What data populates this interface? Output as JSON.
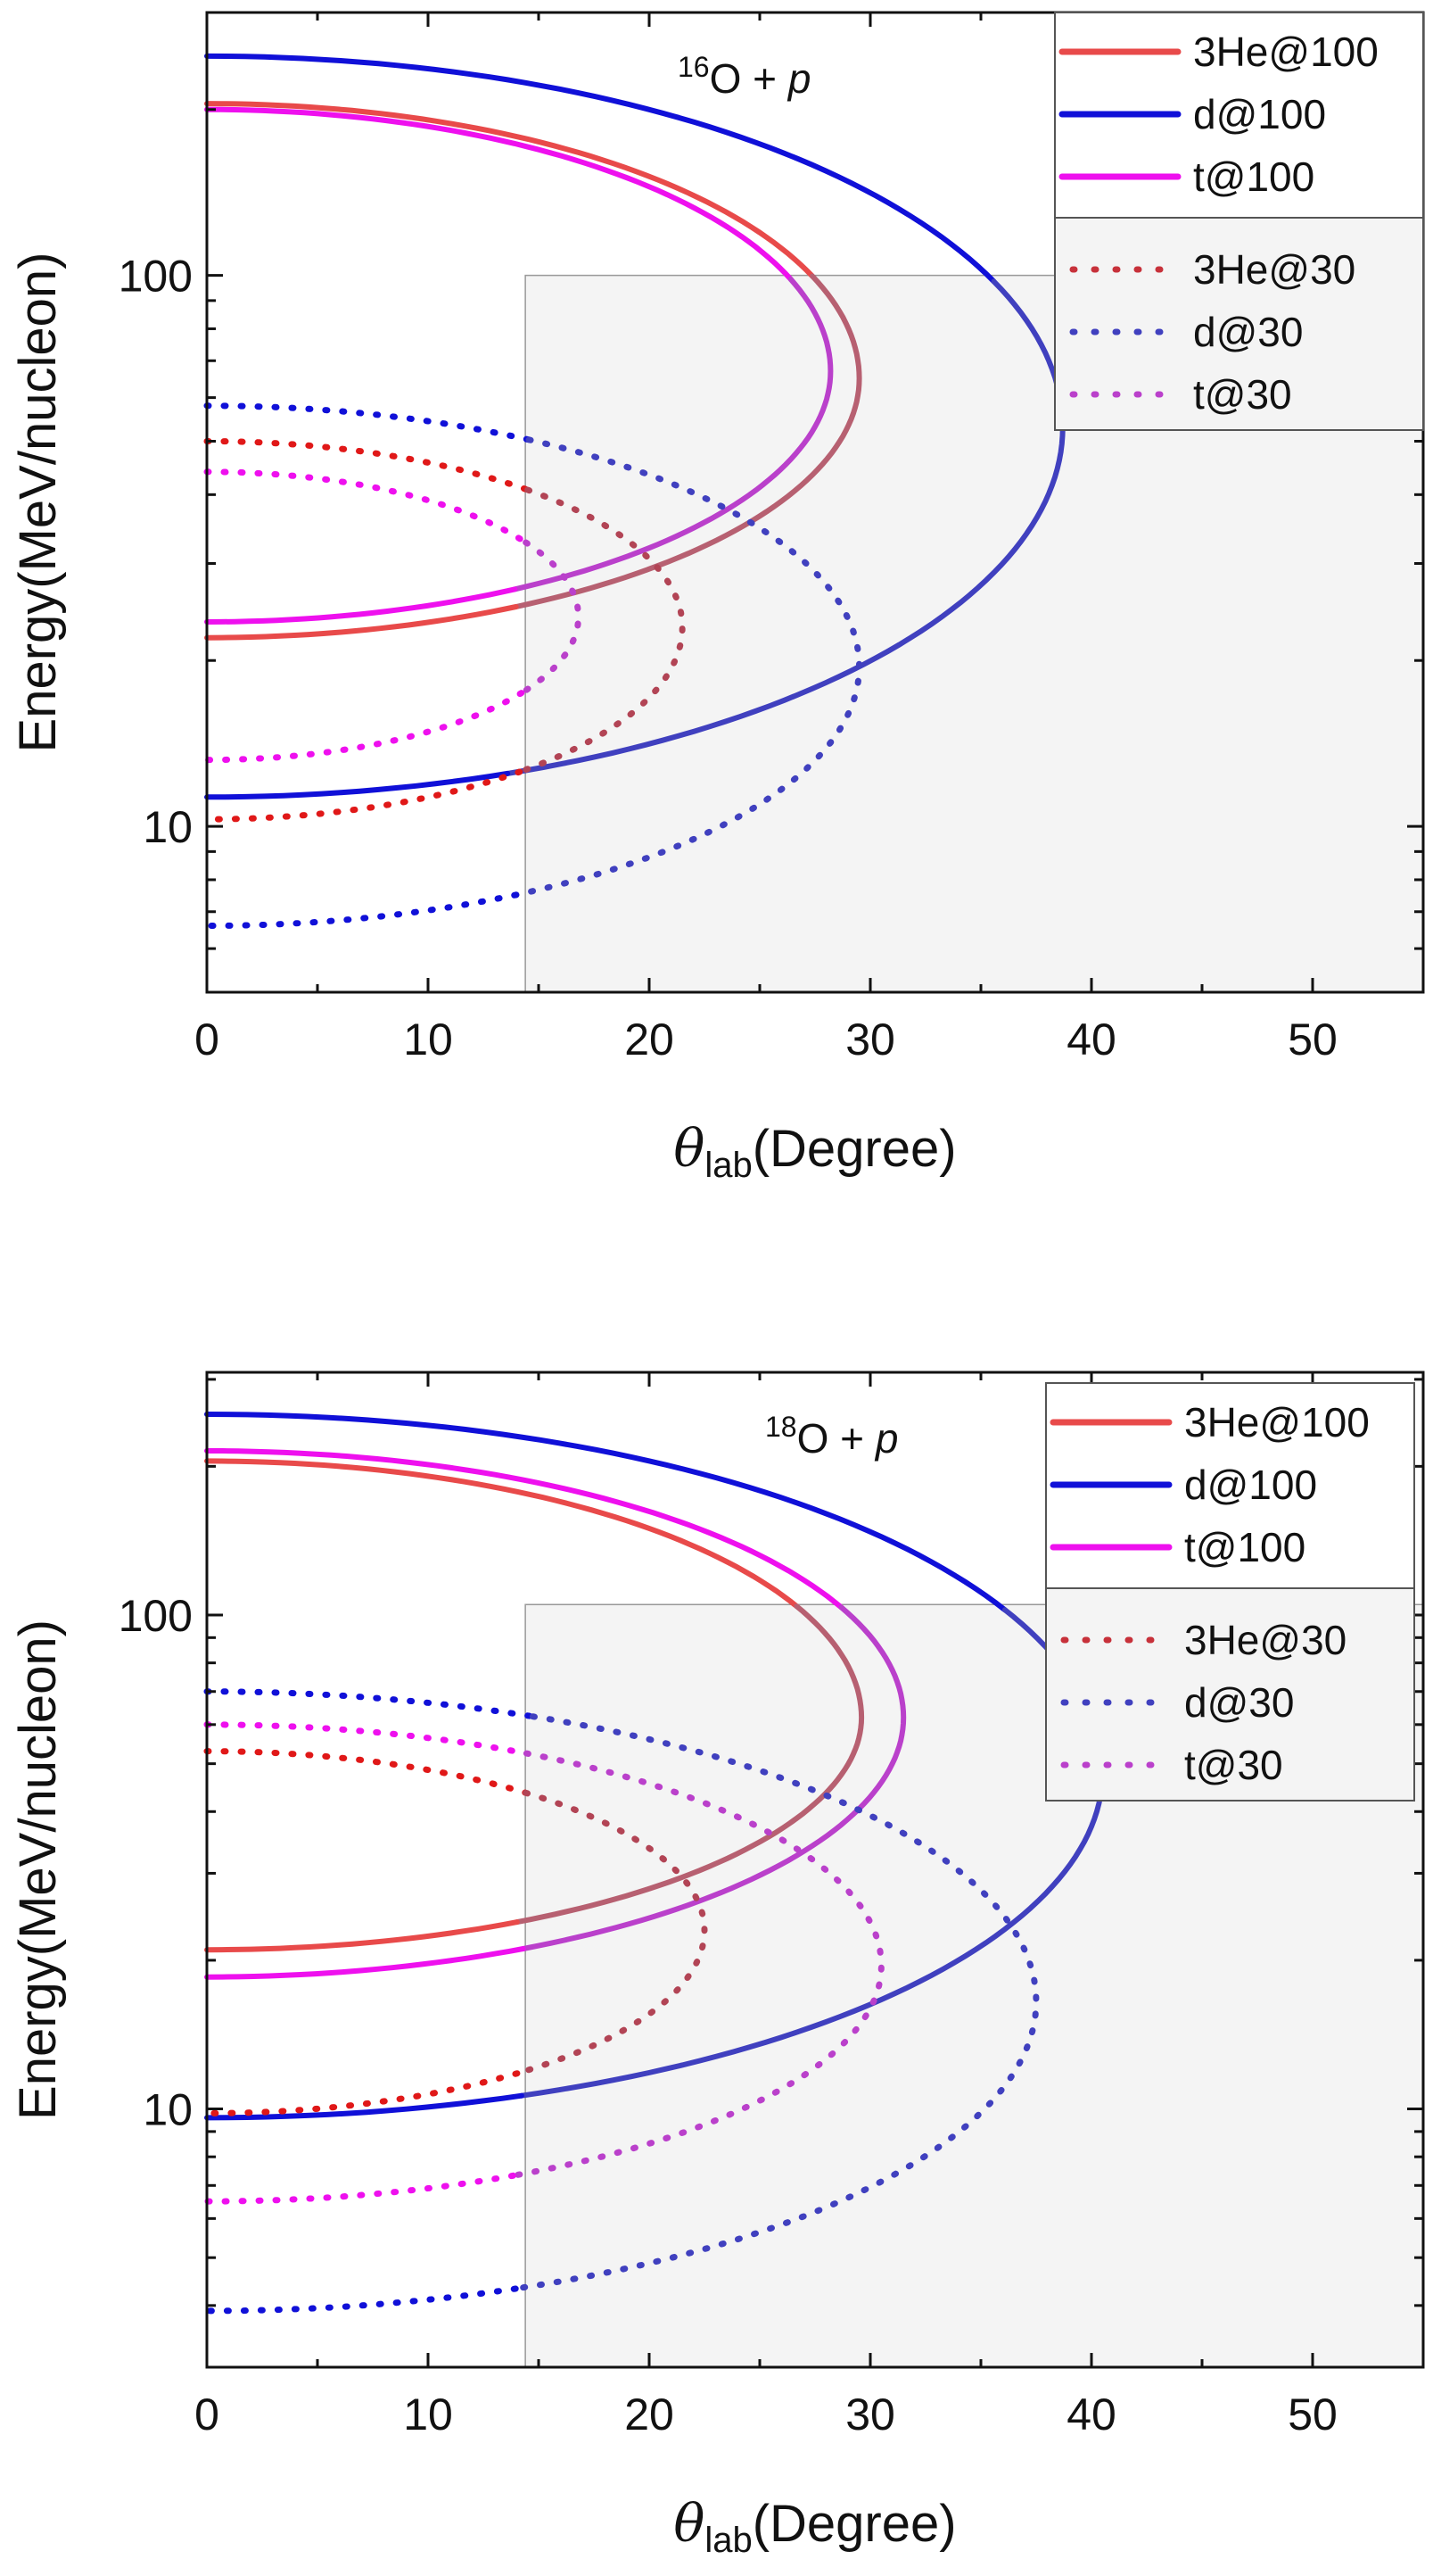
{
  "chart_data": [
    {
      "type": "line",
      "title": "",
      "annotation": {
        "superscript": "16",
        "text": "O + ",
        "italic": "p"
      },
      "xlabel": {
        "symbol": "θ",
        "subscript": "lab",
        "text": "(Degree)"
      },
      "ylabel": "Energy(MeV/nucleon)",
      "xlim": [
        0,
        55
      ],
      "ylim": [
        5,
        300
      ],
      "yscale": "log",
      "xticks": [
        "0",
        "10",
        "20",
        "30",
        "40",
        "50"
      ],
      "yticks": [
        "10",
        "100"
      ],
      "shaded_region": {
        "x": [
          14.4,
          55
        ],
        "y": [
          5,
          100
        ]
      },
      "legend": {
        "placement": "top-right"
      },
      "series": [
        {
          "name": "3He@100",
          "style": "solid",
          "color": "#e84a4a",
          "x_max": 29.5,
          "e_max": 205,
          "e_min": 22,
          "e_at_max": 65
        },
        {
          "name": "d@100",
          "style": "solid",
          "color": "#1010d8",
          "x_max": 38.7,
          "e_max": 250,
          "e_min": 11.3,
          "e_at_max": 53
        },
        {
          "name": "t@100",
          "style": "solid",
          "color": "#ee10ee",
          "x_max": 28.2,
          "e_max": 200,
          "e_min": 23.5,
          "e_at_max": 67
        },
        {
          "name": "3He@30",
          "style": "dotted",
          "color": "#e01818",
          "x_max": 21.5,
          "e_max": 50,
          "e_min": 10.3,
          "e_at_max": 23
        },
        {
          "name": "d@30",
          "style": "dotted",
          "color": "#1010d8",
          "x_max": 29.5,
          "e_max": 58,
          "e_min": 6.6,
          "e_at_max": 19.5
        },
        {
          "name": "t@30",
          "style": "dotted",
          "color": "#ee10ee",
          "x_max": 16.8,
          "e_max": 44,
          "e_min": 13.2,
          "e_at_max": 24
        }
      ]
    },
    {
      "type": "line",
      "title": "",
      "annotation": {
        "superscript": "18",
        "text": "O + ",
        "italic": "p"
      },
      "xlabel": {
        "symbol": "θ",
        "subscript": "lab",
        "text": "(Degree)"
      },
      "ylabel": "Energy(MeV/nucleon)",
      "xlim": [
        0,
        55
      ],
      "ylim": [
        3,
        310
      ],
      "yscale": "log",
      "xticks": [
        "0",
        "10",
        "20",
        "30",
        "40",
        "50"
      ],
      "yticks": [
        "10",
        "100"
      ],
      "shaded_region": {
        "x": [
          14.4,
          55
        ],
        "y": [
          3,
          105
        ]
      },
      "legend": {
        "placement": "top-right"
      },
      "series": [
        {
          "name": "3He@100",
          "style": "solid",
          "color": "#e84a4a",
          "x_max": 29.6,
          "e_max": 205,
          "e_min": 21,
          "e_at_max": 62
        },
        {
          "name": "d@100",
          "style": "solid",
          "color": "#1010d8",
          "x_max": 40.5,
          "e_max": 255,
          "e_min": 9.6,
          "e_at_max": 48
        },
        {
          "name": "t@100",
          "style": "solid",
          "color": "#ee10ee",
          "x_max": 31.5,
          "e_max": 215,
          "e_min": 18.5,
          "e_at_max": 62
        },
        {
          "name": "3He@30",
          "style": "dotted",
          "color": "#e01818",
          "x_max": 22.5,
          "e_max": 53,
          "e_min": 9.8,
          "e_at_max": 23
        },
        {
          "name": "d@30",
          "style": "dotted",
          "color": "#1010d8",
          "x_max": 37.5,
          "e_max": 70,
          "e_min": 3.9,
          "e_at_max": 16.5
        },
        {
          "name": "t@30",
          "style": "dotted",
          "color": "#ee10ee",
          "x_max": 30.5,
          "e_max": 60,
          "e_min": 6.5,
          "e_at_max": 19.5
        }
      ]
    }
  ]
}
